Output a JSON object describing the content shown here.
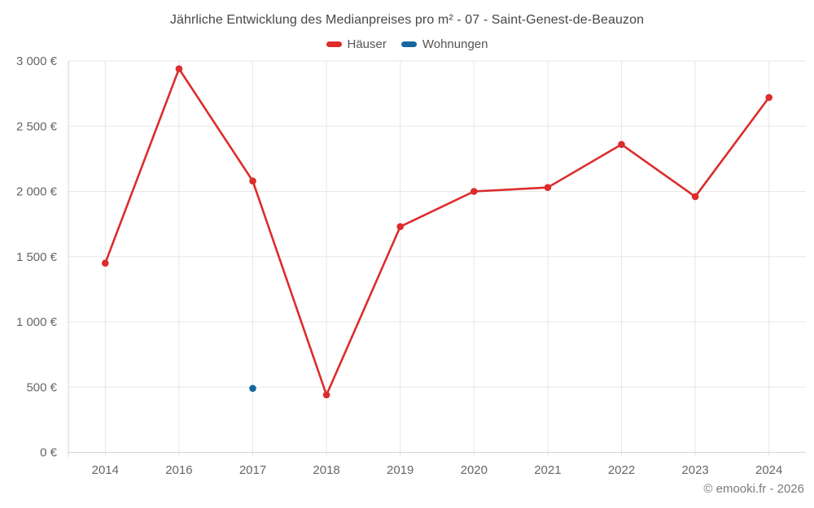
{
  "chart_data": {
    "type": "line",
    "title": "Jährliche Entwicklung des Medianpreises pro m² - 07 - Saint-Genest-de-Beauzon",
    "categories": [
      "2014",
      "2016",
      "2017",
      "2018",
      "2019",
      "2020",
      "2021",
      "2022",
      "2023",
      "2024"
    ],
    "series": [
      {
        "name": "Häuser",
        "color": "#dc2c2c",
        "values": [
          1450,
          2940,
          2080,
          440,
          1730,
          2000,
          2030,
          2360,
          1960,
          2720
        ]
      },
      {
        "name": "Wohnungen",
        "color": "#15679e",
        "values": [
          null,
          null,
          490,
          null,
          null,
          null,
          null,
          null,
          null,
          null
        ]
      }
    ],
    "ylim": [
      0,
      3000
    ],
    "ytick_step": 500,
    "ytick_labels": [
      "0 €",
      "500 €",
      "1 000 €",
      "1 500 €",
      "2 000 €",
      "2 500 €",
      "3 000 €"
    ],
    "xlabel": "",
    "ylabel": "",
    "grid": true,
    "legend_position": "top"
  },
  "footer": "© emooki.fr - 2026",
  "colors": {
    "gridline": "#e7e7e7",
    "axis_line": "#d6d6d6",
    "axis_label": "#666666",
    "title_text": "#474747",
    "legend_text": "#555555",
    "footer_text": "#7b7b7b"
  }
}
